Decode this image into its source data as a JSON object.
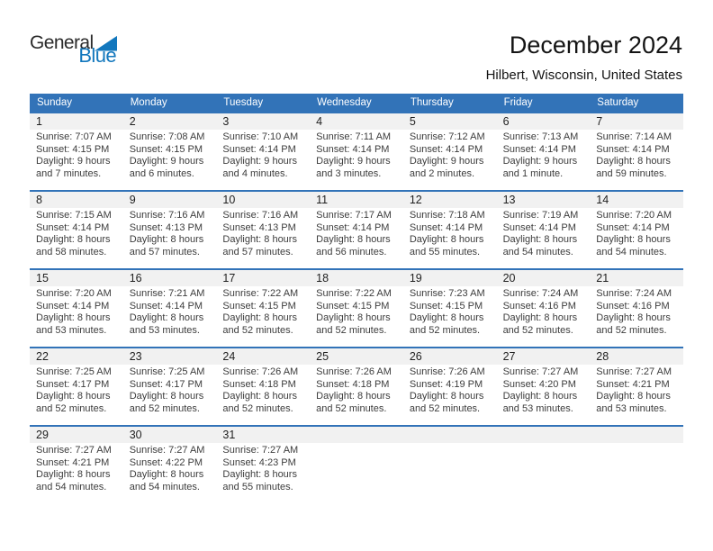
{
  "logo": {
    "part1": "General",
    "part2": "Blue"
  },
  "header": {
    "title": "December 2024",
    "subtitle": "Hilbert, Wisconsin, United States"
  },
  "colors": {
    "header_blue": "#3273B8",
    "logo_blue": "#1277BD",
    "band_gray": "#F1F1F1"
  },
  "calendar": {
    "weekday_headers": [
      "Sunday",
      "Monday",
      "Tuesday",
      "Wednesday",
      "Thursday",
      "Friday",
      "Saturday"
    ],
    "weeks": [
      [
        {
          "day": "1",
          "sunrise": "Sunrise: 7:07 AM",
          "sunset": "Sunset: 4:15 PM",
          "daylight_line1": "Daylight: 9 hours",
          "daylight_line2": "and 7 minutes."
        },
        {
          "day": "2",
          "sunrise": "Sunrise: 7:08 AM",
          "sunset": "Sunset: 4:15 PM",
          "daylight_line1": "Daylight: 9 hours",
          "daylight_line2": "and 6 minutes."
        },
        {
          "day": "3",
          "sunrise": "Sunrise: 7:10 AM",
          "sunset": "Sunset: 4:14 PM",
          "daylight_line1": "Daylight: 9 hours",
          "daylight_line2": "and 4 minutes."
        },
        {
          "day": "4",
          "sunrise": "Sunrise: 7:11 AM",
          "sunset": "Sunset: 4:14 PM",
          "daylight_line1": "Daylight: 9 hours",
          "daylight_line2": "and 3 minutes."
        },
        {
          "day": "5",
          "sunrise": "Sunrise: 7:12 AM",
          "sunset": "Sunset: 4:14 PM",
          "daylight_line1": "Daylight: 9 hours",
          "daylight_line2": "and 2 minutes."
        },
        {
          "day": "6",
          "sunrise": "Sunrise: 7:13 AM",
          "sunset": "Sunset: 4:14 PM",
          "daylight_line1": "Daylight: 9 hours",
          "daylight_line2": "and 1 minute."
        },
        {
          "day": "7",
          "sunrise": "Sunrise: 7:14 AM",
          "sunset": "Sunset: 4:14 PM",
          "daylight_line1": "Daylight: 8 hours",
          "daylight_line2": "and 59 minutes."
        }
      ],
      [
        {
          "day": "8",
          "sunrise": "Sunrise: 7:15 AM",
          "sunset": "Sunset: 4:14 PM",
          "daylight_line1": "Daylight: 8 hours",
          "daylight_line2": "and 58 minutes."
        },
        {
          "day": "9",
          "sunrise": "Sunrise: 7:16 AM",
          "sunset": "Sunset: 4:13 PM",
          "daylight_line1": "Daylight: 8 hours",
          "daylight_line2": "and 57 minutes."
        },
        {
          "day": "10",
          "sunrise": "Sunrise: 7:16 AM",
          "sunset": "Sunset: 4:13 PM",
          "daylight_line1": "Daylight: 8 hours",
          "daylight_line2": "and 57 minutes."
        },
        {
          "day": "11",
          "sunrise": "Sunrise: 7:17 AM",
          "sunset": "Sunset: 4:14 PM",
          "daylight_line1": "Daylight: 8 hours",
          "daylight_line2": "and 56 minutes."
        },
        {
          "day": "12",
          "sunrise": "Sunrise: 7:18 AM",
          "sunset": "Sunset: 4:14 PM",
          "daylight_line1": "Daylight: 8 hours",
          "daylight_line2": "and 55 minutes."
        },
        {
          "day": "13",
          "sunrise": "Sunrise: 7:19 AM",
          "sunset": "Sunset: 4:14 PM",
          "daylight_line1": "Daylight: 8 hours",
          "daylight_line2": "and 54 minutes."
        },
        {
          "day": "14",
          "sunrise": "Sunrise: 7:20 AM",
          "sunset": "Sunset: 4:14 PM",
          "daylight_line1": "Daylight: 8 hours",
          "daylight_line2": "and 54 minutes."
        }
      ],
      [
        {
          "day": "15",
          "sunrise": "Sunrise: 7:20 AM",
          "sunset": "Sunset: 4:14 PM",
          "daylight_line1": "Daylight: 8 hours",
          "daylight_line2": "and 53 minutes."
        },
        {
          "day": "16",
          "sunrise": "Sunrise: 7:21 AM",
          "sunset": "Sunset: 4:14 PM",
          "daylight_line1": "Daylight: 8 hours",
          "daylight_line2": "and 53 minutes."
        },
        {
          "day": "17",
          "sunrise": "Sunrise: 7:22 AM",
          "sunset": "Sunset: 4:15 PM",
          "daylight_line1": "Daylight: 8 hours",
          "daylight_line2": "and 52 minutes."
        },
        {
          "day": "18",
          "sunrise": "Sunrise: 7:22 AM",
          "sunset": "Sunset: 4:15 PM",
          "daylight_line1": "Daylight: 8 hours",
          "daylight_line2": "and 52 minutes."
        },
        {
          "day": "19",
          "sunrise": "Sunrise: 7:23 AM",
          "sunset": "Sunset: 4:15 PM",
          "daylight_line1": "Daylight: 8 hours",
          "daylight_line2": "and 52 minutes."
        },
        {
          "day": "20",
          "sunrise": "Sunrise: 7:24 AM",
          "sunset": "Sunset: 4:16 PM",
          "daylight_line1": "Daylight: 8 hours",
          "daylight_line2": "and 52 minutes."
        },
        {
          "day": "21",
          "sunrise": "Sunrise: 7:24 AM",
          "sunset": "Sunset: 4:16 PM",
          "daylight_line1": "Daylight: 8 hours",
          "daylight_line2": "and 52 minutes."
        }
      ],
      [
        {
          "day": "22",
          "sunrise": "Sunrise: 7:25 AM",
          "sunset": "Sunset: 4:17 PM",
          "daylight_line1": "Daylight: 8 hours",
          "daylight_line2": "and 52 minutes."
        },
        {
          "day": "23",
          "sunrise": "Sunrise: 7:25 AM",
          "sunset": "Sunset: 4:17 PM",
          "daylight_line1": "Daylight: 8 hours",
          "daylight_line2": "and 52 minutes."
        },
        {
          "day": "24",
          "sunrise": "Sunrise: 7:26 AM",
          "sunset": "Sunset: 4:18 PM",
          "daylight_line1": "Daylight: 8 hours",
          "daylight_line2": "and 52 minutes."
        },
        {
          "day": "25",
          "sunrise": "Sunrise: 7:26 AM",
          "sunset": "Sunset: 4:18 PM",
          "daylight_line1": "Daylight: 8 hours",
          "daylight_line2": "and 52 minutes."
        },
        {
          "day": "26",
          "sunrise": "Sunrise: 7:26 AM",
          "sunset": "Sunset: 4:19 PM",
          "daylight_line1": "Daylight: 8 hours",
          "daylight_line2": "and 52 minutes."
        },
        {
          "day": "27",
          "sunrise": "Sunrise: 7:27 AM",
          "sunset": "Sunset: 4:20 PM",
          "daylight_line1": "Daylight: 8 hours",
          "daylight_line2": "and 53 minutes."
        },
        {
          "day": "28",
          "sunrise": "Sunrise: 7:27 AM",
          "sunset": "Sunset: 4:21 PM",
          "daylight_line1": "Daylight: 8 hours",
          "daylight_line2": "and 53 minutes."
        }
      ],
      [
        {
          "day": "29",
          "sunrise": "Sunrise: 7:27 AM",
          "sunset": "Sunset: 4:21 PM",
          "daylight_line1": "Daylight: 8 hours",
          "daylight_line2": "and 54 minutes."
        },
        {
          "day": "30",
          "sunrise": "Sunrise: 7:27 AM",
          "sunset": "Sunset: 4:22 PM",
          "daylight_line1": "Daylight: 8 hours",
          "daylight_line2": "and 54 minutes."
        },
        {
          "day": "31",
          "sunrise": "Sunrise: 7:27 AM",
          "sunset": "Sunset: 4:23 PM",
          "daylight_line1": "Daylight: 8 hours",
          "daylight_line2": "and 55 minutes."
        },
        null,
        null,
        null,
        null
      ]
    ]
  }
}
